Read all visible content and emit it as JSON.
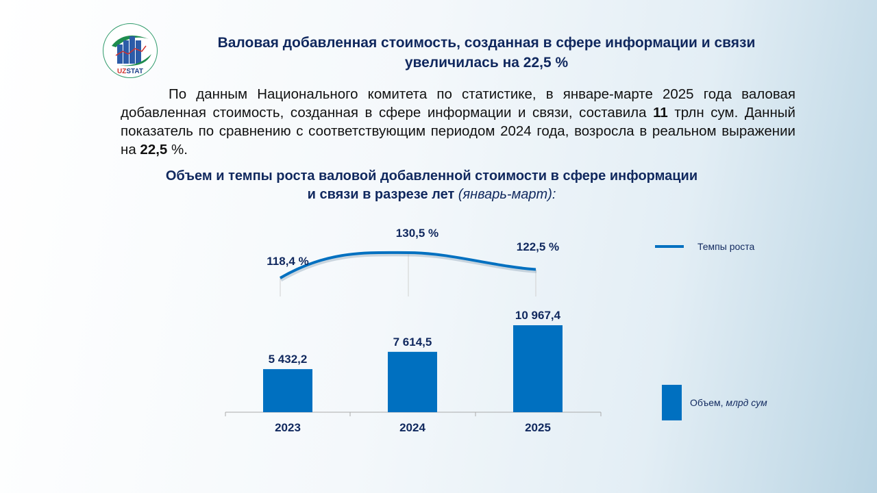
{
  "title_line1": "Валовая добавленная стоимость, созданная в сфере информации и связи",
  "title_line2": "увеличилась на 22,5 %",
  "logo_text": "UZSTAT",
  "paragraph": {
    "p1": "По данным Национального комитета по статистике, в январе-марте 2025 года валовая добавленная стоимость, созданная в сфере информации и связи, составила ",
    "b1": "11",
    "p2": " трлн сум. Данный показатель по сравнению с соответствующим периодом 2024 года, возросла в реальном выражении на ",
    "b2": "22,5",
    "p3": " %."
  },
  "chart_data": {
    "type": "bar+line",
    "title_line1": "Объем и темпы роста валовой добавленной стоимости в сфере информации",
    "title_line2": "и связи в разрезе лет ",
    "title_italic": "(январь-март):",
    "categories": [
      "2023",
      "2024",
      "2025"
    ],
    "series": [
      {
        "name": "Объем, млрд сум",
        "name_main": "Объем, ",
        "name_italic": "млрд сум",
        "type": "bar",
        "values": [
          5432.2,
          7614.5,
          10967.4
        ],
        "labels": [
          "5 432,2",
          "7 614,5",
          "10 967,4"
        ],
        "color": "#0070c0"
      },
      {
        "name": "Темпы роста",
        "type": "line",
        "values": [
          118.4,
          130.5,
          122.5
        ],
        "labels": [
          "118,4 %",
          "130,5 %",
          "122,5 %"
        ],
        "color": "#0070c0"
      }
    ],
    "legend": "right"
  }
}
